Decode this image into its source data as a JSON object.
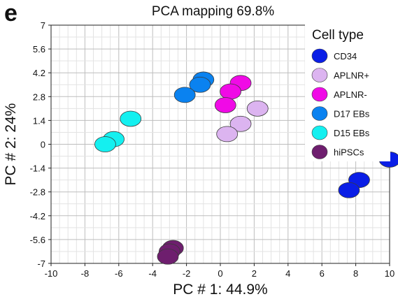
{
  "panel_label": "e",
  "chart_data": {
    "type": "scatter",
    "title": "PCA mapping 69.8%",
    "xlabel": "PC # 1: 44.9%",
    "ylabel": "PC # 2: 24%",
    "xlim": [
      -10,
      10
    ],
    "ylim": [
      -7,
      7
    ],
    "xticks": [
      "-10",
      "-8",
      "-6",
      "-4",
      "-2",
      "0",
      "2",
      "4",
      "6",
      "8",
      "10"
    ],
    "yticks": [
      "7",
      "5.6",
      "4.2",
      "2.8",
      "1.4",
      "0",
      "-1.4",
      "-2.8",
      "-4.2",
      "-5.6",
      "-7"
    ],
    "grid": true,
    "legend_title": "Cell type",
    "legend_position": "top-right",
    "series": [
      {
        "name": "CD34",
        "color": "#0a1ee6",
        "points": [
          [
            10.0,
            -0.9
          ],
          [
            8.2,
            -2.1
          ],
          [
            7.6,
            -2.7
          ]
        ]
      },
      {
        "name": "APLNR+",
        "color": "#dcb4f0",
        "points": [
          [
            2.2,
            2.1
          ],
          [
            1.2,
            1.2
          ],
          [
            0.4,
            0.6
          ]
        ]
      },
      {
        "name": "APLNR-",
        "color": "#f00ae6",
        "points": [
          [
            1.2,
            3.6
          ],
          [
            0.6,
            3.1
          ],
          [
            0.3,
            2.3
          ]
        ]
      },
      {
        "name": "D17 EBs",
        "color": "#0a82f0",
        "points": [
          [
            -1.0,
            3.8
          ],
          [
            -1.2,
            3.5
          ],
          [
            -2.1,
            2.9
          ]
        ]
      },
      {
        "name": "D15 EBs",
        "color": "#14f0f0",
        "points": [
          [
            -5.3,
            1.5
          ],
          [
            -6.3,
            0.3
          ],
          [
            -6.8,
            0.0
          ]
        ]
      },
      {
        "name": "hiPSCs",
        "color": "#6e1e6e",
        "points": [
          [
            -2.8,
            -6.1
          ],
          [
            -3.0,
            -6.3
          ],
          [
            -3.1,
            -6.6
          ]
        ]
      }
    ]
  }
}
